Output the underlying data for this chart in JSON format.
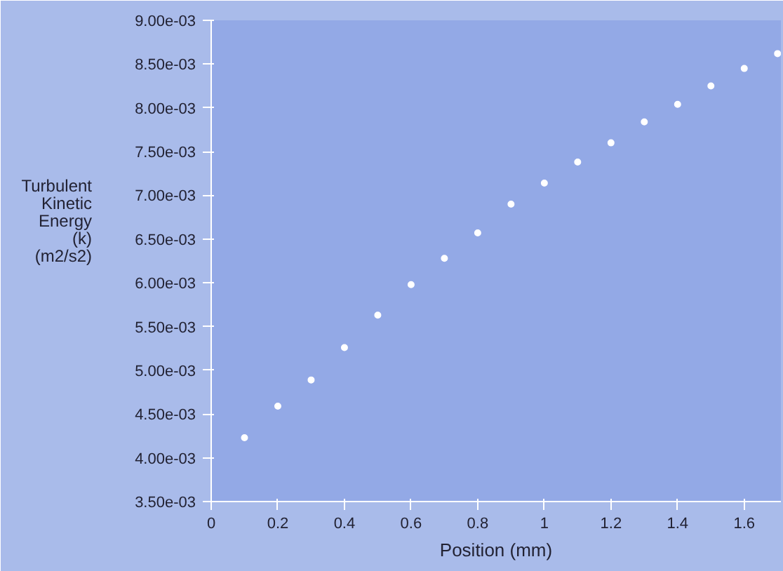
{
  "chart_data": {
    "type": "scatter",
    "xlabel": "Position (mm)",
    "ylabel": "Turbulent\nKinetic\nEnergy\n(k)\n(m2/s2)",
    "x": [
      0.1,
      0.2,
      0.3,
      0.4,
      0.5,
      0.6,
      0.7,
      0.8,
      0.9,
      1.0,
      1.1,
      1.2,
      1.3,
      1.4,
      1.5,
      1.6,
      1.7
    ],
    "series": [
      {
        "color": "#ffffff",
        "values": [
          0.00423,
          0.00459,
          0.00489,
          0.00526,
          0.00563,
          0.00598,
          0.00628,
          0.00657,
          0.0069,
          0.00714,
          0.00738,
          0.0076,
          0.00784,
          0.00804,
          0.00825,
          0.00845,
          0.00862
        ]
      }
    ],
    "xlim": [
      0,
      1.71
    ],
    "ylim": [
      0.0035,
      0.009
    ],
    "xticks": [
      0,
      0.2,
      0.4,
      0.6,
      0.8,
      1,
      1.2,
      1.4,
      1.6
    ],
    "yticks": [
      {
        "value": 0.0035,
        "label": "3.50e-03"
      },
      {
        "value": 0.004,
        "label": "4.00e-03"
      },
      {
        "value": 0.0045,
        "label": "4.50e-03"
      },
      {
        "value": 0.005,
        "label": "5.00e-03"
      },
      {
        "value": 0.0055,
        "label": "5.50e-03"
      },
      {
        "value": 0.006,
        "label": "6.00e-03"
      },
      {
        "value": 0.0065,
        "label": "6.50e-03"
      },
      {
        "value": 0.007,
        "label": "7.00e-03"
      },
      {
        "value": 0.0075,
        "label": "7.50e-03"
      },
      {
        "value": 0.008,
        "label": "8.00e-03"
      },
      {
        "value": 0.0085,
        "label": "8.50e-03"
      },
      {
        "value": 0.009,
        "label": "9.00e-03"
      }
    ],
    "grid": false,
    "marker": "circle"
  }
}
